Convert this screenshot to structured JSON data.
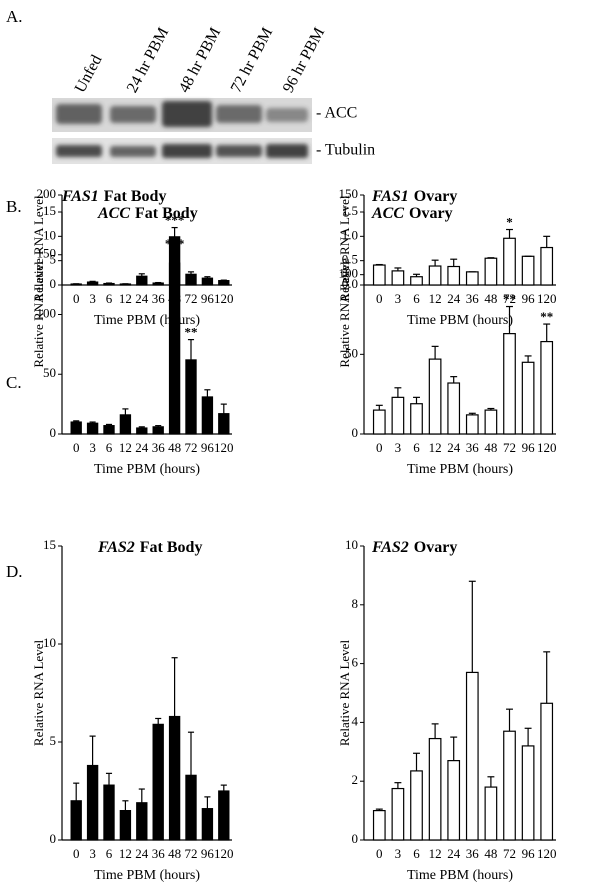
{
  "panel_labels": [
    "A.",
    "B.",
    "C.",
    "D."
  ],
  "blot": {
    "lanes": [
      "Unfed",
      "24 hr PBM",
      "48 hr PBM",
      "72 hr PBM",
      "96 hr PBM"
    ],
    "bands": [
      "- ACC",
      "- Tubulin"
    ]
  },
  "chart_data": [
    {
      "type": "bar",
      "gene": "ACC",
      "title": "Fat Body",
      "y_label": "Relative RNA Level",
      "x_label": "Time PBM (hours)",
      "color": "#000000",
      "categories": [
        "0",
        "3",
        "6",
        "12",
        "24",
        "36",
        "48",
        "72",
        "96",
        "120"
      ],
      "values": [
        0.2,
        0.6,
        0.3,
        0.2,
        1.8,
        0.4,
        9.9,
        2.2,
        1.4,
        0.9
      ],
      "errors": [
        0.05,
        0.15,
        0.1,
        0.05,
        0.5,
        0.1,
        1.9,
        0.5,
        0.3,
        0.1
      ],
      "annotations": [
        {
          "index": 6,
          "text": "***"
        }
      ],
      "ylim": [
        0,
        15
      ],
      "yticks": [
        0,
        5,
        10,
        15
      ]
    },
    {
      "type": "bar",
      "gene": "ACC",
      "title": "Ovary",
      "y_label": "Relative RNA Level",
      "x_label": "Time PBM (hours)",
      "color": "#ffffff",
      "categories": [
        "0",
        "3",
        "6",
        "12",
        "24",
        "36",
        "48",
        "72",
        "96",
        "120"
      ],
      "values": [
        0.41,
        0.29,
        0.17,
        0.39,
        0.38,
        0.27,
        0.55,
        0.96,
        0.59,
        0.77
      ],
      "errors": [
        0.01,
        0.06,
        0.05,
        0.12,
        0.15,
        0,
        0.01,
        0.18,
        0,
        0.23
      ],
      "annotations": [
        {
          "index": 7,
          "text": "*"
        }
      ],
      "ylim": [
        0,
        1.5
      ],
      "yticks": [
        {
          "value": 0,
          "label": "0.0"
        },
        0.5,
        {
          "value": 1,
          "label": "1.0"
        },
        1.5
      ]
    },
    {
      "type": "bar",
      "gene": "FAS1",
      "title": "Fat Body",
      "y_label": "Relative RNA Level",
      "x_label": "Time PBM (hours)",
      "color": "#000000",
      "categories": [
        "0",
        "3",
        "6",
        "12",
        "24",
        "36",
        "48",
        "72",
        "96",
        "120"
      ],
      "values": [
        10,
        9,
        7,
        16,
        5,
        6,
        143,
        62,
        31,
        17
      ],
      "errors": [
        1,
        1,
        1,
        5,
        1,
        1,
        10,
        17,
        6,
        8
      ],
      "annotations": [
        {
          "index": 6,
          "text": "***"
        },
        {
          "index": 7,
          "text": "**"
        }
      ],
      "ylim": [
        0,
        200
      ],
      "yticks": [
        0,
        50,
        100,
        150,
        200
      ]
    },
    {
      "type": "bar",
      "gene": "FAS1",
      "title": "Ovary",
      "y_label": "Relative RNA Level",
      "x_label": "Time PBM (hours)",
      "color": "#ffffff",
      "categories": [
        "0",
        "3",
        "6",
        "12",
        "24",
        "36",
        "48",
        "72",
        "96",
        "120"
      ],
      "values": [
        15,
        23,
        19,
        47,
        32,
        12,
        15,
        63,
        45,
        58
      ],
      "errors": [
        3,
        6,
        4,
        8,
        4,
        1,
        1,
        17,
        4,
        11
      ],
      "annotations": [
        {
          "index": 7,
          "text": "**"
        },
        {
          "index": 9,
          "text": "**"
        }
      ],
      "ylim": [
        0,
        150
      ],
      "yticks": [
        0,
        50,
        100,
        150
      ]
    },
    {
      "type": "bar",
      "gene": "FAS2",
      "title": "Fat Body",
      "y_label": "Relative RNA Level",
      "x_label": "Time PBM (hours)",
      "color": "#000000",
      "categories": [
        "0",
        "3",
        "6",
        "12",
        "24",
        "36",
        "48",
        "72",
        "96",
        "120"
      ],
      "values": [
        2.0,
        3.8,
        2.8,
        1.5,
        1.9,
        5.9,
        6.3,
        3.3,
        1.6,
        2.5
      ],
      "errors": [
        0.9,
        1.5,
        0.6,
        0.5,
        0.7,
        0.3,
        3.0,
        2.2,
        0.6,
        0.3
      ],
      "annotations": [],
      "ylim": [
        0,
        15
      ],
      "yticks": [
        0,
        5,
        10,
        15
      ]
    },
    {
      "type": "bar",
      "gene": "FAS2",
      "title": "Ovary",
      "y_label": "Relative RNA Level",
      "x_label": "Time PBM (hours)",
      "color": "#ffffff",
      "categories": [
        "0",
        "3",
        "6",
        "12",
        "24",
        "36",
        "48",
        "72",
        "96",
        "120"
      ],
      "values": [
        1.0,
        1.75,
        2.35,
        3.45,
        2.7,
        5.7,
        1.8,
        3.7,
        3.2,
        4.65
      ],
      "errors": [
        0.05,
        0.2,
        0.6,
        0.5,
        0.8,
        3.1,
        0.35,
        0.75,
        0.6,
        1.75
      ],
      "annotations": [],
      "ylim": [
        0,
        10
      ],
      "yticks": [
        0,
        2,
        4,
        6,
        8,
        10
      ]
    }
  ]
}
